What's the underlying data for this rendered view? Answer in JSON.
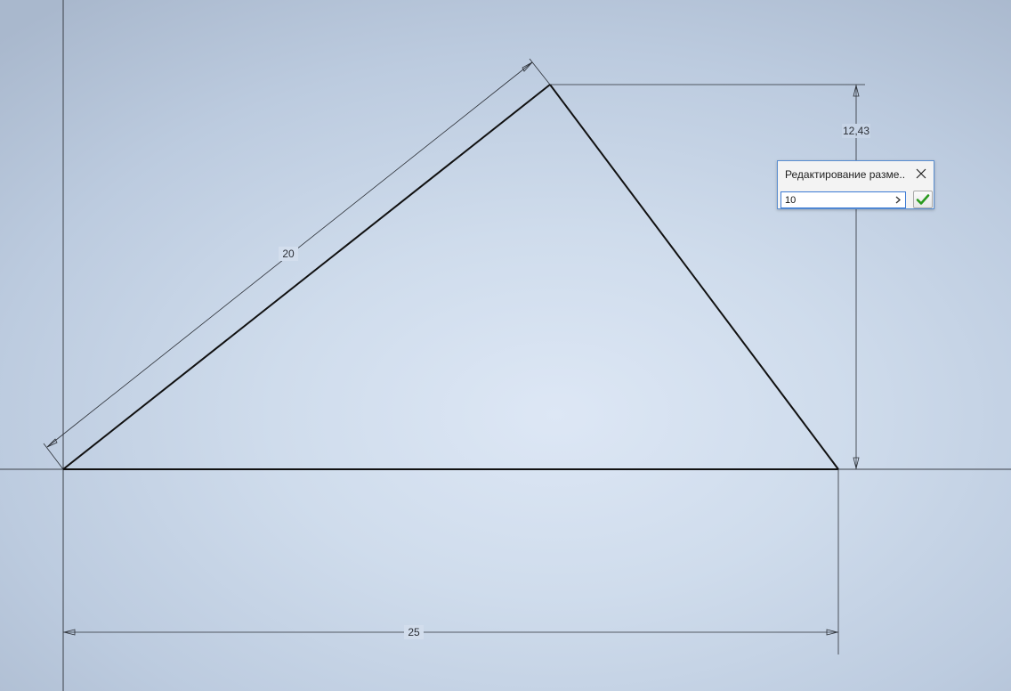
{
  "sketch": {
    "dimensions": [
      {
        "name": "length-dimension-20",
        "value": "20"
      },
      {
        "name": "height-dimension-12-43",
        "value": "12,43"
      },
      {
        "name": "base-dimension-25",
        "value": "25"
      }
    ]
  },
  "dimension_dialog": {
    "title": "Редактирование разме...",
    "input_value": "10",
    "close_icon": "close-icon",
    "arrow_icon": "chevron-right-icon",
    "ok_icon": "checkmark-icon",
    "ok_color": "#2a9a1f"
  },
  "colors": {
    "geometry": "#111111",
    "dimension_line": "#2b2f36",
    "dialog_border": "#5a8ed0"
  }
}
